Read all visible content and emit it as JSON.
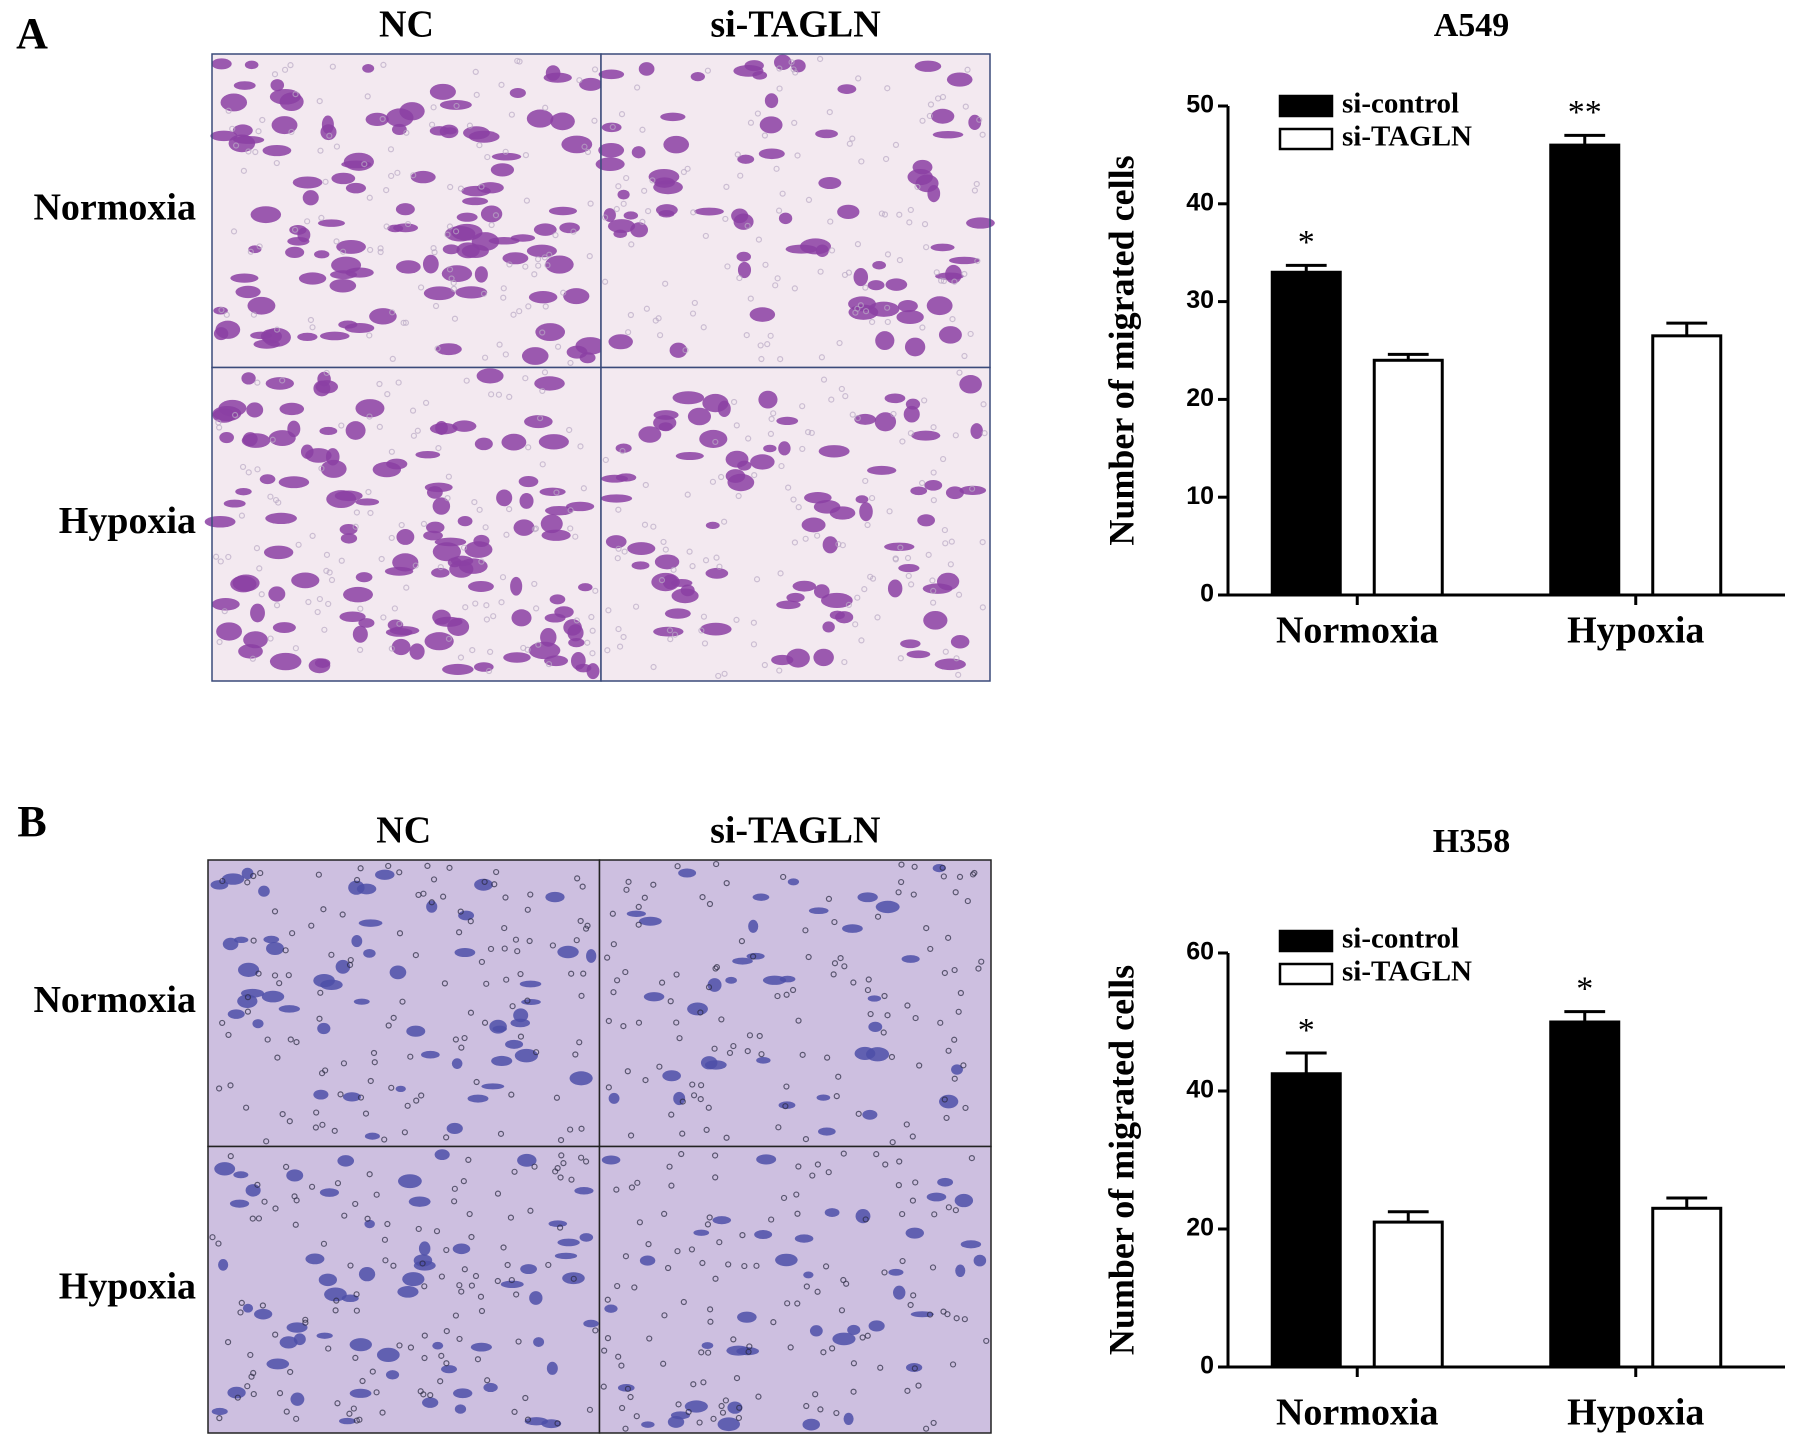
{
  "figure": {
    "panels": [
      {
        "label": "A",
        "columns": [
          "NC",
          "si-TAGLN"
        ],
        "rows": [
          "Normoxia",
          "Hypoxia"
        ]
      },
      {
        "label": "B",
        "columns": [
          "NC",
          "si-TAGLN"
        ],
        "rows": [
          "Normoxia",
          "Hypoxia"
        ]
      }
    ]
  },
  "chart_data": [
    {
      "type": "bar",
      "title": "A549",
      "y_label": "Number of migrated cells",
      "categories": [
        "Normoxia",
        "Hypoxia"
      ],
      "series": [
        {
          "name": "si-control",
          "color": "#000000",
          "values": [
            33,
            46
          ],
          "errors": [
            0.7,
            1.0
          ],
          "significance": [
            "*",
            "**"
          ]
        },
        {
          "name": "si-TAGLN",
          "color": "#ffffff",
          "values": [
            24,
            26.5
          ],
          "errors": [
            0.6,
            1.3
          ]
        }
      ],
      "ylim": [
        0,
        50
      ],
      "yticks": [
        0,
        10,
        20,
        30,
        40,
        50
      ],
      "legend": "top-left"
    },
    {
      "type": "bar",
      "title": "H358",
      "y_label": "Number of migrated cells",
      "categories": [
        "Normoxia",
        "Hypoxia"
      ],
      "series": [
        {
          "name": "si-control",
          "color": "#000000",
          "values": [
            42.5,
            50
          ],
          "errors": [
            3,
            1.5
          ],
          "significance": [
            "*",
            "*"
          ]
        },
        {
          "name": "si-TAGLN",
          "color": "#ffffff",
          "values": [
            21,
            23
          ],
          "errors": [
            1.5,
            1.5
          ]
        }
      ],
      "ylim": [
        0,
        60
      ],
      "yticks": [
        0,
        20,
        40,
        60
      ],
      "legend": "top-left"
    }
  ]
}
